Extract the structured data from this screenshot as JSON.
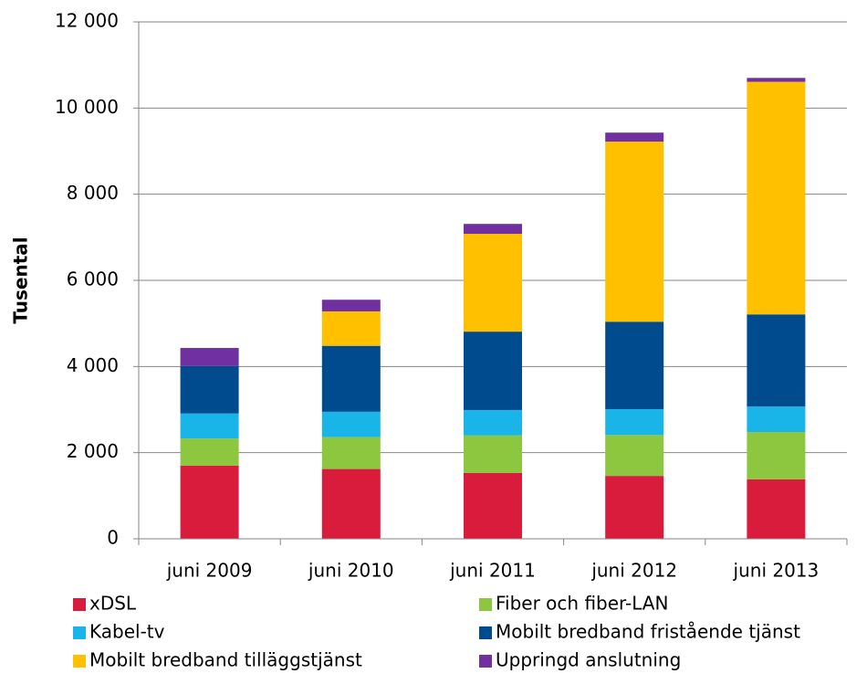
{
  "chart_data": {
    "type": "stacked-bar",
    "y_label": "Tusental",
    "categories": [
      "juni 2009",
      "juni 2010",
      "juni 2011",
      "juni 2012",
      "juni 2013"
    ],
    "series": [
      {
        "name": "xDSL",
        "color": "#d91c3c",
        "values": [
          1700,
          1620,
          1530,
          1460,
          1380
        ]
      },
      {
        "name": "Fiber och fiber-LAN",
        "color": "#8dc63f",
        "values": [
          630,
          740,
          870,
          950,
          1100
        ]
      },
      {
        "name": "Kabel-tv",
        "color": "#19b4e8",
        "values": [
          580,
          590,
          590,
          600,
          590
        ]
      },
      {
        "name": "Mobilt bredband fristående tjänst",
        "color": "#004b8d",
        "values": [
          1100,
          1530,
          1820,
          2030,
          2140
        ]
      },
      {
        "name": "Mobilt bredband tilläggstjänst",
        "color": "#ffc000",
        "values": [
          0,
          800,
          2270,
          4180,
          5400
        ]
      },
      {
        "name": "Uppringd anslutning",
        "color": "#7030a0",
        "values": [
          420,
          270,
          230,
          210,
          90
        ]
      }
    ],
    "ylim": [
      0,
      12000
    ],
    "yticks": [
      0,
      {
        "value": 2000,
        "label": "2 000"
      },
      {
        "value": 4000,
        "label": "4 000"
      },
      {
        "value": 6000,
        "label": "6 000"
      },
      {
        "value": 8000,
        "label": "8 000"
      },
      {
        "value": 10000,
        "label": "10 000"
      },
      {
        "value": 12000,
        "label": "12 000"
      }
    ],
    "grid": true
  }
}
